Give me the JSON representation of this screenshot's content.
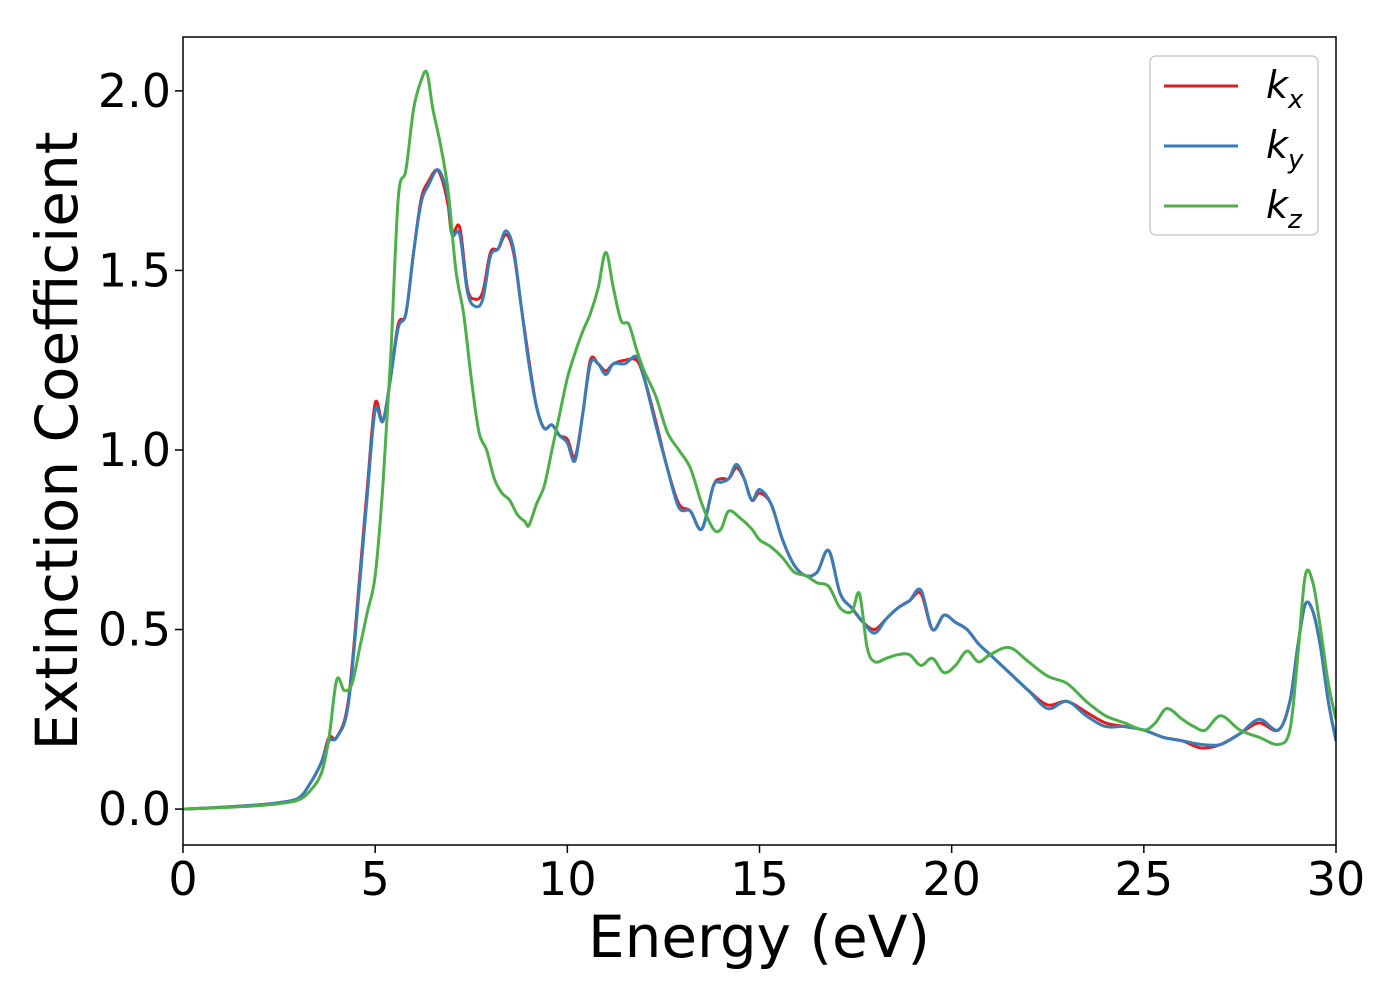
{
  "chart_data": {
    "type": "line",
    "xlabel": "Energy (eV)",
    "ylabel": "Extinction Coefficient",
    "xlim": [
      0,
      30
    ],
    "ylim": [
      -0.1,
      2.15
    ],
    "xticks": [
      0,
      5,
      10,
      15,
      20,
      25,
      30
    ],
    "yticks": [
      0.0,
      0.5,
      1.0,
      1.5,
      2.0
    ],
    "xtick_labels": [
      "0",
      "5",
      "10",
      "15",
      "20",
      "25",
      "30"
    ],
    "ytick_labels": [
      "0.0",
      "0.5",
      "1.0",
      "1.5",
      "2.0"
    ],
    "grid": false,
    "legend": "top-right",
    "series": [
      {
        "name": "k",
        "subscript": "x",
        "color": "#e41a1c",
        "x": [
          0,
          1,
          2,
          2.5,
          3,
          3.3,
          3.6,
          3.8,
          4.0,
          4.3,
          4.6,
          4.8,
          5.0,
          5.2,
          5.4,
          5.6,
          5.8,
          6.0,
          6.2,
          6.4,
          6.6,
          6.75,
          6.9,
          7.0,
          7.2,
          7.4,
          7.6,
          7.8,
          8.0,
          8.2,
          8.4,
          8.6,
          8.8,
          9.0,
          9.2,
          9.4,
          9.6,
          9.8,
          10.0,
          10.2,
          10.4,
          10.6,
          10.8,
          11.0,
          11.2,
          11.5,
          11.8,
          12.0,
          12.3,
          12.6,
          12.9,
          13.2,
          13.5,
          13.8,
          14.0,
          14.2,
          14.4,
          14.6,
          14.8,
          15.0,
          15.3,
          15.6,
          15.9,
          16.2,
          16.5,
          16.8,
          17.1,
          17.4,
          17.7,
          18.0,
          18.3,
          18.6,
          18.9,
          19.2,
          19.5,
          19.8,
          20.1,
          20.4,
          20.7,
          21.0,
          21.5,
          22.0,
          22.5,
          23.0,
          23.5,
          24.0,
          24.5,
          25.0,
          25.5,
          26.0,
          26.5,
          27.0,
          27.5,
          28.0,
          28.5,
          28.8,
          29.0,
          29.2,
          29.4,
          29.6,
          29.8,
          30.0
        ],
        "values": [
          0.0,
          0.005,
          0.012,
          0.018,
          0.03,
          0.07,
          0.13,
          0.2,
          0.2,
          0.3,
          0.65,
          0.9,
          1.13,
          1.08,
          1.2,
          1.35,
          1.38,
          1.55,
          1.7,
          1.75,
          1.78,
          1.75,
          1.68,
          1.6,
          1.62,
          1.45,
          1.42,
          1.44,
          1.55,
          1.56,
          1.6,
          1.55,
          1.4,
          1.25,
          1.12,
          1.06,
          1.07,
          1.04,
          1.03,
          0.98,
          1.1,
          1.25,
          1.24,
          1.22,
          1.24,
          1.25,
          1.25,
          1.2,
          1.08,
          0.95,
          0.85,
          0.83,
          0.78,
          0.9,
          0.92,
          0.92,
          0.95,
          0.92,
          0.86,
          0.88,
          0.85,
          0.75,
          0.68,
          0.65,
          0.66,
          0.72,
          0.6,
          0.56,
          0.52,
          0.5,
          0.53,
          0.56,
          0.58,
          0.6,
          0.5,
          0.54,
          0.52,
          0.5,
          0.46,
          0.43,
          0.38,
          0.33,
          0.29,
          0.3,
          0.27,
          0.24,
          0.23,
          0.22,
          0.2,
          0.19,
          0.17,
          0.18,
          0.21,
          0.24,
          0.22,
          0.3,
          0.45,
          0.57,
          0.55,
          0.45,
          0.3,
          0.19
        ]
      },
      {
        "name": "k",
        "subscript": "y",
        "color": "#377eb8",
        "x": [
          0,
          1,
          2,
          2.5,
          3,
          3.3,
          3.6,
          3.8,
          4.0,
          4.3,
          4.6,
          4.8,
          5.0,
          5.2,
          5.4,
          5.6,
          5.8,
          6.0,
          6.2,
          6.4,
          6.6,
          6.75,
          6.9,
          7.0,
          7.2,
          7.4,
          7.6,
          7.8,
          8.0,
          8.2,
          8.4,
          8.6,
          8.8,
          9.0,
          9.2,
          9.4,
          9.6,
          9.8,
          10.0,
          10.2,
          10.4,
          10.6,
          10.8,
          11.0,
          11.2,
          11.5,
          11.8,
          12.0,
          12.3,
          12.6,
          12.9,
          13.2,
          13.5,
          13.8,
          14.0,
          14.2,
          14.4,
          14.6,
          14.8,
          15.0,
          15.3,
          15.6,
          15.9,
          16.2,
          16.5,
          16.8,
          17.1,
          17.4,
          17.7,
          18.0,
          18.3,
          18.6,
          18.9,
          19.2,
          19.5,
          19.8,
          20.1,
          20.4,
          20.7,
          21.0,
          21.5,
          22.0,
          22.5,
          23.0,
          23.5,
          24.0,
          24.5,
          25.0,
          25.5,
          26.0,
          26.5,
          27.0,
          27.5,
          28.0,
          28.5,
          28.8,
          29.0,
          29.2,
          29.4,
          29.6,
          29.8,
          30.0
        ],
        "values": [
          0.0,
          0.005,
          0.012,
          0.018,
          0.03,
          0.07,
          0.13,
          0.19,
          0.2,
          0.29,
          0.63,
          0.88,
          1.11,
          1.08,
          1.2,
          1.34,
          1.38,
          1.55,
          1.69,
          1.74,
          1.78,
          1.76,
          1.7,
          1.6,
          1.6,
          1.44,
          1.4,
          1.42,
          1.54,
          1.56,
          1.61,
          1.56,
          1.4,
          1.24,
          1.12,
          1.06,
          1.07,
          1.04,
          1.02,
          0.97,
          1.1,
          1.24,
          1.24,
          1.21,
          1.24,
          1.24,
          1.26,
          1.2,
          1.07,
          0.95,
          0.84,
          0.83,
          0.78,
          0.9,
          0.91,
          0.92,
          0.96,
          0.92,
          0.86,
          0.89,
          0.85,
          0.75,
          0.68,
          0.65,
          0.66,
          0.72,
          0.6,
          0.56,
          0.52,
          0.49,
          0.53,
          0.56,
          0.58,
          0.61,
          0.5,
          0.54,
          0.52,
          0.5,
          0.46,
          0.43,
          0.38,
          0.33,
          0.28,
          0.3,
          0.26,
          0.23,
          0.23,
          0.22,
          0.2,
          0.19,
          0.18,
          0.18,
          0.21,
          0.25,
          0.22,
          0.3,
          0.45,
          0.57,
          0.55,
          0.45,
          0.3,
          0.19
        ]
      },
      {
        "name": "k",
        "subscript": "z",
        "color": "#4daf4a",
        "x": [
          0,
          1,
          2,
          2.5,
          3,
          3.3,
          3.6,
          3.8,
          4.0,
          4.2,
          4.4,
          4.6,
          4.8,
          5.0,
          5.2,
          5.4,
          5.6,
          5.8,
          6.0,
          6.2,
          6.35,
          6.5,
          6.7,
          6.9,
          7.1,
          7.3,
          7.5,
          7.7,
          7.9,
          8.1,
          8.3,
          8.5,
          8.7,
          8.9,
          9.0,
          9.2,
          9.4,
          9.6,
          9.8,
          10.0,
          10.2,
          10.4,
          10.6,
          10.8,
          11.0,
          11.2,
          11.4,
          11.6,
          11.8,
          12.0,
          12.3,
          12.6,
          12.9,
          13.2,
          13.5,
          13.8,
          14.0,
          14.2,
          14.5,
          14.8,
          15.0,
          15.3,
          15.6,
          15.9,
          16.2,
          16.5,
          16.8,
          17.1,
          17.4,
          17.6,
          17.8,
          18.0,
          18.3,
          18.6,
          18.9,
          19.2,
          19.5,
          19.8,
          20.1,
          20.4,
          20.7,
          21.0,
          21.5,
          22.0,
          22.5,
          23.0,
          23.5,
          24.0,
          24.5,
          25.0,
          25.3,
          25.6,
          26.0,
          26.3,
          26.6,
          27.0,
          27.5,
          28.0,
          28.5,
          28.8,
          29.0,
          29.2,
          29.4,
          29.6,
          29.8,
          30.0
        ],
        "values": [
          0.0,
          0.004,
          0.01,
          0.015,
          0.025,
          0.05,
          0.1,
          0.2,
          0.36,
          0.33,
          0.35,
          0.45,
          0.55,
          0.65,
          0.9,
          1.25,
          1.7,
          1.78,
          1.95,
          2.03,
          2.05,
          1.95,
          1.85,
          1.72,
          1.5,
          1.38,
          1.2,
          1.05,
          1.0,
          0.92,
          0.88,
          0.86,
          0.82,
          0.8,
          0.79,
          0.85,
          0.9,
          1.0,
          1.1,
          1.2,
          1.27,
          1.33,
          1.38,
          1.45,
          1.55,
          1.45,
          1.36,
          1.35,
          1.28,
          1.22,
          1.15,
          1.05,
          1.0,
          0.95,
          0.85,
          0.78,
          0.78,
          0.83,
          0.81,
          0.78,
          0.75,
          0.73,
          0.7,
          0.66,
          0.65,
          0.63,
          0.62,
          0.56,
          0.55,
          0.6,
          0.45,
          0.41,
          0.42,
          0.43,
          0.43,
          0.4,
          0.42,
          0.38,
          0.4,
          0.44,
          0.41,
          0.43,
          0.45,
          0.41,
          0.37,
          0.35,
          0.3,
          0.26,
          0.24,
          0.22,
          0.24,
          0.28,
          0.25,
          0.23,
          0.22,
          0.26,
          0.22,
          0.2,
          0.18,
          0.22,
          0.42,
          0.65,
          0.63,
          0.5,
          0.35,
          0.25
        ]
      }
    ]
  }
}
